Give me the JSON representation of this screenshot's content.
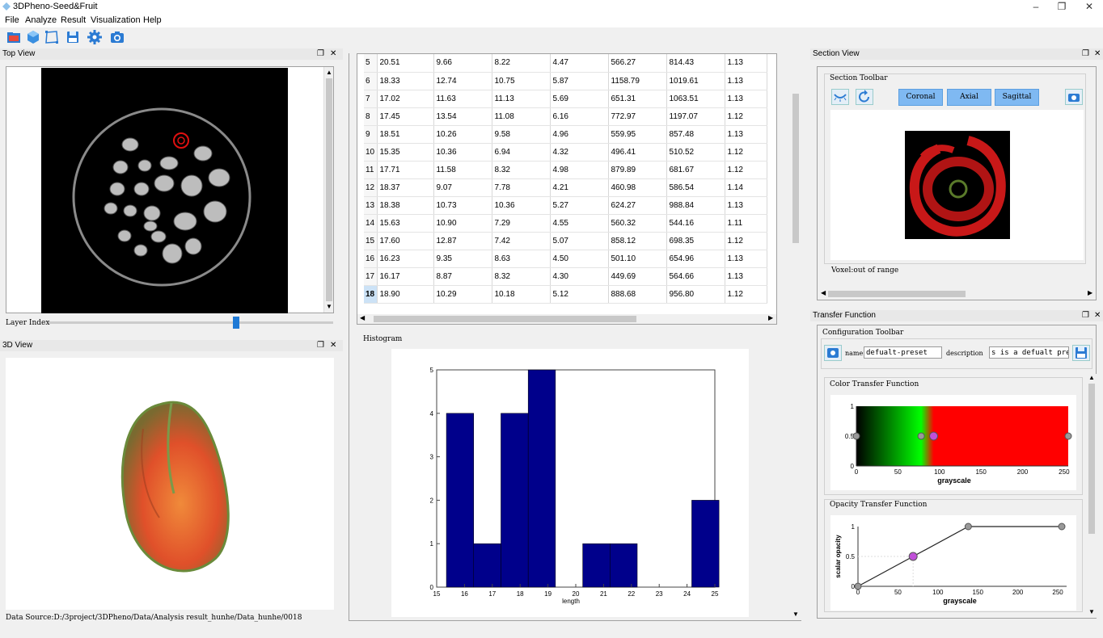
{
  "app": {
    "title": "3DPheno-Seed&Fruit"
  },
  "window_controls": {
    "minimize": "–",
    "maximize": "❐",
    "close": "✕"
  },
  "menu": [
    "File",
    "Analyze",
    "Result",
    "Visualization",
    "Help"
  ],
  "toolbar": [
    "open-folder-icon",
    "cube-icon",
    "crop-icon",
    "save-icon",
    "gear-icon",
    "camera-icon"
  ],
  "panel_buttons": {
    "float": "❐",
    "close": "✕"
  },
  "top_view": {
    "title": "Top View",
    "layer_label": "Layer Index",
    "slider_fraction": 0.66
  },
  "view3d": {
    "title": "3D View",
    "data_source": "Data Source:D:/3project/3DPheno/Data/Analysis result_hunhe/Data_hunhe/0018"
  },
  "table": {
    "selected_row": "18",
    "rows": [
      [
        "5",
        "20.51",
        "9.66",
        "8.22",
        "4.47",
        "566.27",
        "814.43",
        "1.13"
      ],
      [
        "6",
        "18.33",
        "12.74",
        "10.75",
        "5.87",
        "1158.79",
        "1019.61",
        "1.13"
      ],
      [
        "7",
        "17.02",
        "11.63",
        "11.13",
        "5.69",
        "651.31",
        "1063.51",
        "1.13"
      ],
      [
        "8",
        "17.45",
        "13.54",
        "11.08",
        "6.16",
        "772.97",
        "1197.07",
        "1.12"
      ],
      [
        "9",
        "18.51",
        "10.26",
        "9.58",
        "4.96",
        "559.95",
        "857.48",
        "1.13"
      ],
      [
        "10",
        "15.35",
        "10.36",
        "6.94",
        "4.32",
        "496.41",
        "510.52",
        "1.12"
      ],
      [
        "11",
        "17.71",
        "11.58",
        "8.32",
        "4.98",
        "879.89",
        "681.67",
        "1.12"
      ],
      [
        "12",
        "18.37",
        "9.07",
        "7.78",
        "4.21",
        "460.98",
        "586.54",
        "1.14"
      ],
      [
        "13",
        "18.38",
        "10.73",
        "10.36",
        "5.27",
        "624.27",
        "988.84",
        "1.13"
      ],
      [
        "14",
        "15.63",
        "10.90",
        "7.29",
        "4.55",
        "560.32",
        "544.16",
        "1.11"
      ],
      [
        "15",
        "17.60",
        "12.87",
        "7.42",
        "5.07",
        "858.12",
        "698.35",
        "1.12"
      ],
      [
        "16",
        "16.23",
        "9.35",
        "8.63",
        "4.50",
        "501.10",
        "654.96",
        "1.13"
      ],
      [
        "17",
        "16.17",
        "8.87",
        "8.32",
        "4.30",
        "449.69",
        "564.66",
        "1.13"
      ],
      [
        "18",
        "18.90",
        "10.29",
        "10.18",
        "5.12",
        "888.68",
        "956.80",
        "1.12"
      ]
    ]
  },
  "histogram": {
    "group_title": "Histogram",
    "chart_data": {
      "type": "bar",
      "xlabel": "length",
      "xlim": [
        15,
        25
      ],
      "ylim": [
        0,
        5
      ],
      "xticks": [
        "15",
        "16",
        "17",
        "18",
        "19",
        "20",
        "21",
        "22",
        "23",
        "24",
        "25"
      ],
      "yticks": [
        "0",
        "1",
        "2",
        "3",
        "4",
        "5"
      ],
      "bins": [
        {
          "x0": 15.35,
          "x1": 16.33,
          "count": 4
        },
        {
          "x0": 16.33,
          "x1": 17.31,
          "count": 1
        },
        {
          "x0": 17.31,
          "x1": 18.29,
          "count": 4
        },
        {
          "x0": 18.29,
          "x1": 19.27,
          "count": 5
        },
        {
          "x0": 19.27,
          "x1": 20.25,
          "count": 0
        },
        {
          "x0": 20.25,
          "x1": 21.23,
          "count": 1
        },
        {
          "x0": 21.23,
          "x1": 22.21,
          "count": 1
        },
        {
          "x0": 22.21,
          "x1": 23.19,
          "count": 0
        },
        {
          "x0": 23.19,
          "x1": 24.17,
          "count": 0
        },
        {
          "x0": 24.17,
          "x1": 25.15,
          "count": 2
        }
      ],
      "bar_color": "#00008b"
    }
  },
  "section_view": {
    "title": "Section View",
    "toolbar_label": "Section Toolbar",
    "buttons": [
      "Coronal",
      "Axial",
      "Sagittal"
    ],
    "voxel_text": "Voxel:out of range"
  },
  "transfer": {
    "title": "Transfer Function",
    "config_label": "Configuration Toolbar",
    "name_label": "name",
    "name_value": "defualt-preset",
    "desc_label": "description",
    "desc_value": "s is a defualt preset",
    "color_tf": {
      "title": "Color Transfer Function",
      "xlabel": "grayscale",
      "yticks": [
        "0",
        "0.5",
        "1"
      ],
      "xticks": [
        "0",
        "50",
        "100",
        "150",
        "200",
        "250"
      ],
      "points": [
        {
          "x": 0,
          "y": 0.5
        },
        {
          "x": 78,
          "y": 0.5
        },
        {
          "x": 93,
          "y": 0.5,
          "selected": true
        },
        {
          "x": 255,
          "y": 0.5
        }
      ],
      "gradient": [
        "#000000",
        "#00ff00",
        "#ff0000"
      ]
    },
    "opacity_tf": {
      "title": "Opacity Transfer Function",
      "xlabel": "grayscale",
      "ylabel": "scalar opacity",
      "yticks": [
        "0",
        "0.5",
        "1"
      ],
      "xticks": [
        "0",
        "50",
        "100",
        "150",
        "200",
        "250"
      ],
      "points": [
        {
          "x": 0,
          "y": 0
        },
        {
          "x": 69,
          "y": 0.5,
          "selected": true
        },
        {
          "x": 138,
          "y": 1
        },
        {
          "x": 255,
          "y": 1
        }
      ]
    }
  }
}
